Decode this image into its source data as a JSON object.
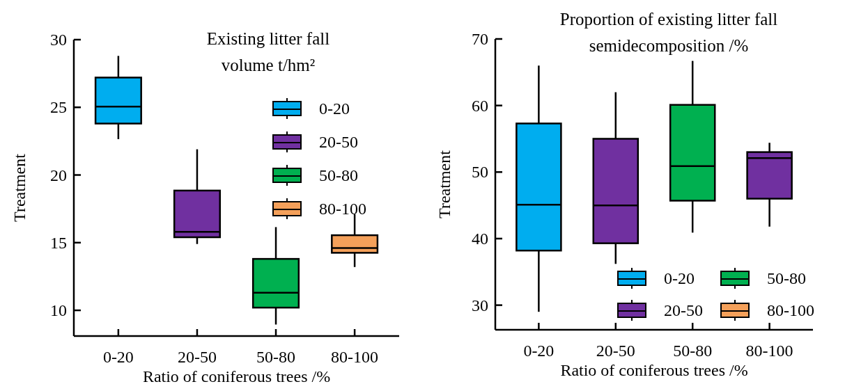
{
  "chart_data": [
    {
      "type": "box",
      "title": "Existing litter fall volume t/hm²",
      "xlabel": "Ratio of coniferous trees /%",
      "ylabel": "Treatment",
      "categories": [
        "0-20",
        "20-50",
        "50-80",
        "80-100"
      ],
      "ylim": [
        8.1,
        30
      ],
      "yticks": [
        10,
        15,
        20,
        25,
        30
      ],
      "legend": "right",
      "series": [
        {
          "name": "0-20",
          "color": "#00adef",
          "boxes": [
            {
              "low": 22.65,
              "q1": 23.8,
              "median": 25.05,
              "q3": 27.2,
              "high": 28.8
            },
            null,
            null,
            null
          ]
        },
        {
          "name": "20-50",
          "color": "#7030a0",
          "boxes": [
            null,
            {
              "low": 14.9,
              "q1": 15.4,
              "median": 15.8,
              "q3": 18.85,
              "high": 21.9
            },
            null,
            null
          ]
        },
        {
          "name": "50-80",
          "color": "#00b050",
          "boxes": [
            null,
            null,
            {
              "low": 8.95,
              "q1": 10.2,
              "median": 11.3,
              "q3": 13.8,
              "high": 16.15
            },
            null
          ]
        },
        {
          "name": "80-100",
          "color": "#f4a05a",
          "boxes": [
            null,
            null,
            null,
            {
              "low": 13.2,
              "q1": 14.25,
              "median": 14.6,
              "q3": 15.55,
              "high": 17.1
            }
          ]
        }
      ]
    },
    {
      "type": "box",
      "title": "Proportion of existing litter fall semidecomposition /%",
      "xlabel": "Ratio of coniferous trees /%",
      "ylabel": "Treatment",
      "categories": [
        "0-20",
        "20-50",
        "50-80",
        "80-100"
      ],
      "ylim": [
        26.3,
        70
      ],
      "yticks": [
        30,
        40,
        50,
        60,
        70
      ],
      "legend": "bottom right",
      "series": [
        {
          "name": "0-20",
          "color": "#00adef",
          "boxes": [
            {
              "low": 29,
              "q1": 38.2,
              "median": 45.1,
              "q3": 57.3,
              "high": 66
            },
            null,
            null,
            null
          ]
        },
        {
          "name": "20-50",
          "color": "#7030a0",
          "boxes": [
            null,
            {
              "low": 36.2,
              "q1": 39.3,
              "median": 45,
              "q3": 55,
              "high": 62
            },
            null,
            {
              "low": 41.8,
              "q1": 46,
              "median": 52.1,
              "q3": 53,
              "high": 54.4
            }
          ]
        },
        {
          "name": "50-80",
          "color": "#00b050",
          "boxes": [
            null,
            null,
            {
              "low": 40.9,
              "q1": 45.7,
              "median": 50.9,
              "q3": 60.1,
              "high": 66.7
            },
            null
          ]
        },
        {
          "name": "80-100",
          "color": "#f4a05a",
          "boxes": [
            null,
            null,
            null,
            null
          ]
        }
      ]
    }
  ]
}
